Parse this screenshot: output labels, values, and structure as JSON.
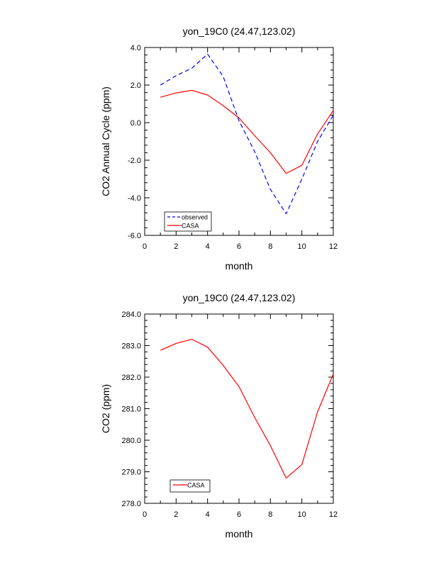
{
  "chart_data": [
    {
      "type": "line",
      "title": "yon_19C0 (24.47,123.02)",
      "xlabel": "month",
      "ylabel": "CO2 Annual Cycle (ppm)",
      "xlim": [
        0,
        12
      ],
      "ylim": [
        -6.0,
        4.0
      ],
      "xticks": [
        0,
        2,
        4,
        6,
        8,
        10,
        12
      ],
      "xtick_labels": [
        "0",
        "2",
        "4",
        "6",
        "8",
        "10",
        "12"
      ],
      "yticks": [
        -6.0,
        -4.0,
        -2.0,
        0.0,
        2.0,
        4.0
      ],
      "ytick_labels": [
        "-6.0",
        "-4.0",
        "-2.0",
        "0.0",
        "2.0",
        "4.0"
      ],
      "grid": false,
      "legend_position": "bottom-left",
      "x": [
        1,
        2,
        3,
        4,
        5,
        6,
        7,
        8,
        9,
        10,
        11,
        12
      ],
      "series": [
        {
          "name": "observed",
          "color": "#0000ff",
          "dash": "dashed",
          "values": [
            2.0,
            2.5,
            2.9,
            3.65,
            2.45,
            0.1,
            -1.55,
            -3.55,
            -4.85,
            -3.0,
            -1.0,
            0.4
          ]
        },
        {
          "name": "CASA",
          "color": "#ff0000",
          "dash": "solid",
          "values": [
            1.35,
            1.58,
            1.72,
            1.47,
            0.9,
            0.25,
            -0.7,
            -1.6,
            -2.7,
            -2.27,
            -0.6,
            0.65
          ]
        }
      ]
    },
    {
      "type": "line",
      "title": "yon_19C0 (24.47,123.02)",
      "xlabel": "month",
      "ylabel": "CO2 (ppm)",
      "xlim": [
        0,
        12
      ],
      "ylim": [
        278.0,
        284.0
      ],
      "xticks": [
        0,
        2,
        4,
        6,
        8,
        10,
        12
      ],
      "xtick_labels": [
        "0",
        "2",
        "4",
        "6",
        "8",
        "10",
        "12"
      ],
      "yticks": [
        278.0,
        279.0,
        280.0,
        281.0,
        282.0,
        283.0,
        284.0
      ],
      "ytick_labels": [
        "278.0",
        "279.0",
        "280.0",
        "281.0",
        "282.0",
        "283.0",
        "284.0"
      ],
      "grid": false,
      "legend_position": "bottom-left",
      "x": [
        1,
        2,
        3,
        4,
        5,
        6,
        7,
        8,
        9,
        10,
        11,
        12
      ],
      "series": [
        {
          "name": "CASA",
          "color": "#ff0000",
          "dash": "solid",
          "values": [
            282.85,
            283.07,
            283.2,
            282.95,
            282.37,
            281.7,
            280.72,
            279.83,
            278.8,
            279.23,
            280.9,
            282.1
          ]
        }
      ]
    }
  ]
}
